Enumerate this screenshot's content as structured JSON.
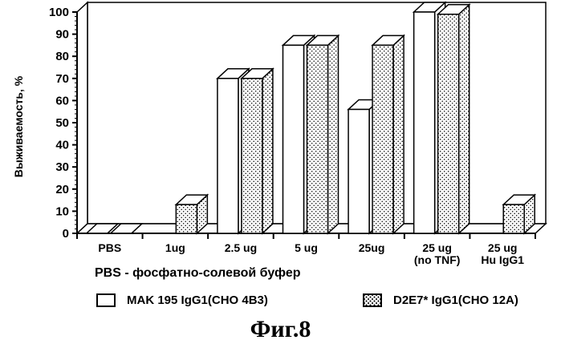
{
  "chart_data": {
    "type": "bar",
    "ylabel": "Выживаемость, %",
    "ylim": [
      0,
      100
    ],
    "yticks": [
      0,
      10,
      20,
      30,
      40,
      50,
      60,
      70,
      80,
      90,
      100
    ],
    "categories": [
      [
        "PBS"
      ],
      [
        "1ug"
      ],
      [
        "2.5 ug"
      ],
      [
        "5 ug"
      ],
      [
        "25ug"
      ],
      [
        "25 ug",
        "(no TNF)"
      ],
      [
        "25 ug",
        "Hu IgG1"
      ]
    ],
    "series": [
      {
        "name": "MAK 195 IgG1(CHO 4B3)",
        "values": [
          0,
          null,
          70,
          85,
          56,
          100,
          null
        ],
        "color": "#ffffff"
      },
      {
        "name": "D2E7* IgG1(CHO 12A)",
        "values": [
          0,
          13,
          70,
          85,
          85,
          99,
          13
        ],
        "color": "#ffffff",
        "pattern": "dots"
      }
    ]
  },
  "note": "PBS - фосфатно-солевой буфер",
  "figure_label": "Фиг.8"
}
